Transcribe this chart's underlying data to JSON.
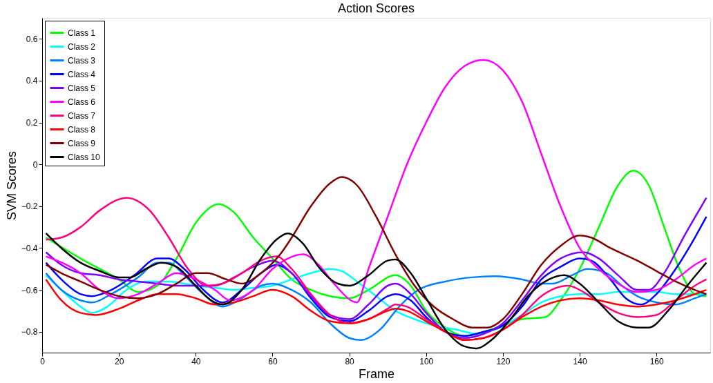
{
  "chart_data": {
    "type": "line",
    "title": "Action Scores",
    "xlabel": "Frame",
    "ylabel": "SVM Scores",
    "xlim": [
      0,
      174
    ],
    "xticks": [
      0,
      20,
      40,
      60,
      80,
      100,
      120,
      140,
      160
    ],
    "ylim": [
      -0.9,
      0.7
    ],
    "yticks": [
      -0.8,
      -0.6,
      -0.4,
      -0.2,
      0,
      0.2,
      0.4,
      0.6
    ],
    "grid": false,
    "legend": "top left",
    "line_style": "solid",
    "marker": "none",
    "series": [
      {
        "name": "Class 1",
        "color": "#00ff00",
        "x": [
          1,
          10,
          20,
          25,
          30,
          35,
          40,
          46,
          50,
          55,
          60,
          65,
          70,
          75,
          80,
          85,
          92,
          96,
          100,
          105,
          110,
          115,
          120,
          125,
          131,
          135,
          140,
          145,
          150,
          154,
          158,
          162,
          166,
          170,
          173
        ],
        "values": [
          -0.35,
          -0.45,
          -0.55,
          -0.61,
          -0.58,
          -0.45,
          -0.28,
          -0.19,
          -0.23,
          -0.35,
          -0.45,
          -0.55,
          -0.6,
          -0.63,
          -0.64,
          -0.6,
          -0.53,
          -0.58,
          -0.7,
          -0.78,
          -0.82,
          -0.8,
          -0.77,
          -0.74,
          -0.73,
          -0.65,
          -0.5,
          -0.3,
          -0.1,
          -0.03,
          -0.1,
          -0.3,
          -0.5,
          -0.62,
          -0.63
        ]
      },
      {
        "name": "Class 2",
        "color": "#00ffff",
        "x": [
          1,
          5,
          10,
          13,
          17,
          22,
          27,
          33,
          40,
          45,
          50,
          55,
          60,
          65,
          70,
          75,
          78,
          82,
          87,
          92,
          97,
          102,
          108,
          113,
          118,
          125,
          130,
          135,
          140,
          145,
          150,
          155,
          160,
          165,
          170,
          173
        ],
        "values": [
          -0.53,
          -0.6,
          -0.68,
          -0.71,
          -0.68,
          -0.6,
          -0.56,
          -0.56,
          -0.58,
          -0.59,
          -0.6,
          -0.59,
          -0.58,
          -0.55,
          -0.52,
          -0.5,
          -0.51,
          -0.56,
          -0.63,
          -0.7,
          -0.74,
          -0.77,
          -0.79,
          -0.81,
          -0.79,
          -0.72,
          -0.66,
          -0.63,
          -0.62,
          -0.62,
          -0.61,
          -0.61,
          -0.61,
          -0.62,
          -0.62,
          -0.62
        ]
      },
      {
        "name": "Class 3",
        "color": "#0080ff",
        "x": [
          1,
          5,
          10,
          13,
          18,
          25,
          30,
          33,
          37,
          42,
          47,
          52,
          57,
          60,
          65,
          70,
          75,
          80,
          83,
          88,
          93,
          98,
          105,
          112,
          118,
          125,
          130,
          133,
          138,
          142,
          147,
          151,
          155,
          160,
          165,
          170,
          173
        ],
        "values": [
          -0.52,
          -0.6,
          -0.65,
          -0.66,
          -0.62,
          -0.54,
          -0.47,
          -0.47,
          -0.53,
          -0.62,
          -0.68,
          -0.64,
          -0.58,
          -0.57,
          -0.6,
          -0.66,
          -0.76,
          -0.83,
          -0.84,
          -0.79,
          -0.68,
          -0.6,
          -0.56,
          -0.54,
          -0.535,
          -0.55,
          -0.57,
          -0.57,
          -0.53,
          -0.5,
          -0.52,
          -0.58,
          -0.63,
          -0.66,
          -0.67,
          -0.64,
          -0.62
        ]
      },
      {
        "name": "Class 4",
        "color": "#0000ff",
        "x": [
          1,
          5,
          10,
          13,
          18,
          24,
          30,
          33,
          37,
          42,
          47,
          52,
          57,
          61,
          65,
          70,
          75,
          80,
          85,
          90,
          92,
          96,
          100,
          105,
          110,
          115,
          120,
          125,
          130,
          135,
          140,
          143,
          148,
          152,
          156,
          160,
          165,
          170,
          173
        ],
        "values": [
          -0.47,
          -0.55,
          -0.62,
          -0.63,
          -0.6,
          -0.53,
          -0.45,
          -0.45,
          -0.5,
          -0.6,
          -0.66,
          -0.6,
          -0.52,
          -0.48,
          -0.52,
          -0.64,
          -0.73,
          -0.75,
          -0.7,
          -0.63,
          -0.62,
          -0.65,
          -0.73,
          -0.8,
          -0.82,
          -0.8,
          -0.77,
          -0.68,
          -0.55,
          -0.49,
          -0.45,
          -0.46,
          -0.55,
          -0.64,
          -0.67,
          -0.62,
          -0.5,
          -0.35,
          -0.25
        ]
      },
      {
        "name": "Class 5",
        "color": "#8000ff",
        "x": [
          1,
          5,
          10,
          15,
          20,
          25,
          30,
          35,
          40,
          45,
          50,
          55,
          60,
          65,
          70,
          75,
          80,
          85,
          90,
          92,
          96,
          100,
          105,
          110,
          115,
          120,
          125,
          130,
          135,
          141,
          145,
          150,
          155,
          158,
          162,
          167,
          173
        ],
        "values": [
          -0.42,
          -0.48,
          -0.52,
          -0.53,
          -0.55,
          -0.56,
          -0.57,
          -0.58,
          -0.58,
          -0.58,
          -0.54,
          -0.49,
          -0.46,
          -0.52,
          -0.63,
          -0.72,
          -0.74,
          -0.67,
          -0.58,
          -0.57,
          -0.62,
          -0.71,
          -0.8,
          -0.83,
          -0.81,
          -0.76,
          -0.65,
          -0.53,
          -0.45,
          -0.42,
          -0.45,
          -0.53,
          -0.6,
          -0.6,
          -0.52,
          -0.35,
          -0.16
        ]
      },
      {
        "name": "Class 6",
        "color": "#ff00ff",
        "x": [
          1,
          10,
          15,
          20,
          25,
          30,
          35,
          40,
          45,
          49,
          55,
          60,
          64,
          68,
          72,
          76,
          82,
          85,
          90,
          95,
          100,
          105,
          110,
          115,
          120,
          125,
          130,
          135,
          140,
          145,
          150,
          155,
          160,
          165,
          170,
          173
        ],
        "values": [
          -0.44,
          -0.52,
          -0.6,
          -0.64,
          -0.62,
          -0.57,
          -0.52,
          -0.55,
          -0.6,
          -0.65,
          -0.6,
          -0.5,
          -0.45,
          -0.43,
          -0.48,
          -0.57,
          -0.66,
          -0.5,
          -0.25,
          0.0,
          0.2,
          0.37,
          0.47,
          0.5,
          0.45,
          0.3,
          0.05,
          -0.2,
          -0.4,
          -0.5,
          -0.57,
          -0.61,
          -0.6,
          -0.55,
          -0.48,
          -0.45
        ]
      },
      {
        "name": "Class 7",
        "color": "#ff0080",
        "x": [
          1,
          5,
          10,
          15,
          22,
          28,
          33,
          38,
          43,
          47,
          52,
          57,
          61,
          65,
          70,
          75,
          80,
          85,
          90,
          92,
          95,
          100,
          105,
          110,
          115,
          120,
          125,
          130,
          137,
          140,
          145,
          150,
          155,
          160,
          165,
          170,
          173
        ],
        "values": [
          -0.36,
          -0.35,
          -0.3,
          -0.22,
          -0.16,
          -0.22,
          -0.35,
          -0.5,
          -0.58,
          -0.57,
          -0.52,
          -0.46,
          -0.44,
          -0.5,
          -0.62,
          -0.72,
          -0.76,
          -0.74,
          -0.69,
          -0.67,
          -0.68,
          -0.74,
          -0.8,
          -0.84,
          -0.83,
          -0.79,
          -0.72,
          -0.63,
          -0.58,
          -0.6,
          -0.66,
          -0.71,
          -0.73,
          -0.72,
          -0.65,
          -0.58,
          -0.55
        ]
      },
      {
        "name": "Class 8",
        "color": "#ff0000",
        "x": [
          1,
          5,
          10,
          14,
          20,
          25,
          30,
          35,
          40,
          45,
          50,
          55,
          60,
          65,
          70,
          75,
          80,
          85,
          90,
          92,
          95,
          100,
          105,
          110,
          115,
          120,
          125,
          130,
          135,
          140,
          145,
          150,
          155,
          160,
          165,
          170,
          173
        ],
        "values": [
          -0.55,
          -0.65,
          -0.71,
          -0.72,
          -0.69,
          -0.65,
          -0.62,
          -0.62,
          -0.64,
          -0.67,
          -0.66,
          -0.63,
          -0.6,
          -0.63,
          -0.7,
          -0.75,
          -0.76,
          -0.74,
          -0.7,
          -0.69,
          -0.7,
          -0.75,
          -0.8,
          -0.84,
          -0.83,
          -0.79,
          -0.73,
          -0.68,
          -0.65,
          -0.64,
          -0.65,
          -0.67,
          -0.68,
          -0.67,
          -0.65,
          -0.62,
          -0.6
        ]
      },
      {
        "name": "Class 9",
        "color": "#800000",
        "x": [
          1,
          5,
          10,
          15,
          20,
          25,
          30,
          35,
          40,
          43,
          48,
          52,
          57,
          62,
          65,
          70,
          75,
          78,
          82,
          87,
          92,
          97,
          102,
          107,
          112,
          116,
          120,
          125,
          130,
          135,
          140,
          143,
          148,
          155,
          160,
          165,
          170,
          173
        ],
        "values": [
          -0.48,
          -0.52,
          -0.56,
          -0.6,
          -0.63,
          -0.64,
          -0.62,
          -0.57,
          -0.52,
          -0.52,
          -0.55,
          -0.57,
          -0.52,
          -0.43,
          -0.35,
          -0.2,
          -0.09,
          -0.06,
          -0.1,
          -0.25,
          -0.43,
          -0.58,
          -0.68,
          -0.74,
          -0.78,
          -0.78,
          -0.74,
          -0.62,
          -0.48,
          -0.39,
          -0.34,
          -0.35,
          -0.4,
          -0.46,
          -0.51,
          -0.56,
          -0.6,
          -0.62
        ]
      },
      {
        "name": "Class 10",
        "color": "#000000",
        "x": [
          1,
          5,
          10,
          15,
          20,
          23,
          27,
          31,
          35,
          40,
          44,
          47,
          52,
          57,
          61,
          64,
          68,
          72,
          77,
          80,
          85,
          90,
          92,
          96,
          100,
          105,
          110,
          113,
          117,
          122,
          127,
          132,
          136,
          140,
          145,
          150,
          155,
          158,
          163,
          168,
          173
        ],
        "values": [
          -0.33,
          -0.4,
          -0.47,
          -0.51,
          -0.54,
          -0.54,
          -0.5,
          -0.47,
          -0.49,
          -0.58,
          -0.65,
          -0.67,
          -0.6,
          -0.45,
          -0.36,
          -0.33,
          -0.38,
          -0.49,
          -0.57,
          -0.58,
          -0.53,
          -0.46,
          -0.455,
          -0.52,
          -0.64,
          -0.79,
          -0.87,
          -0.88,
          -0.84,
          -0.74,
          -0.62,
          -0.55,
          -0.53,
          -0.57,
          -0.66,
          -0.75,
          -0.78,
          -0.78,
          -0.7,
          -0.58,
          -0.47
        ]
      }
    ]
  }
}
